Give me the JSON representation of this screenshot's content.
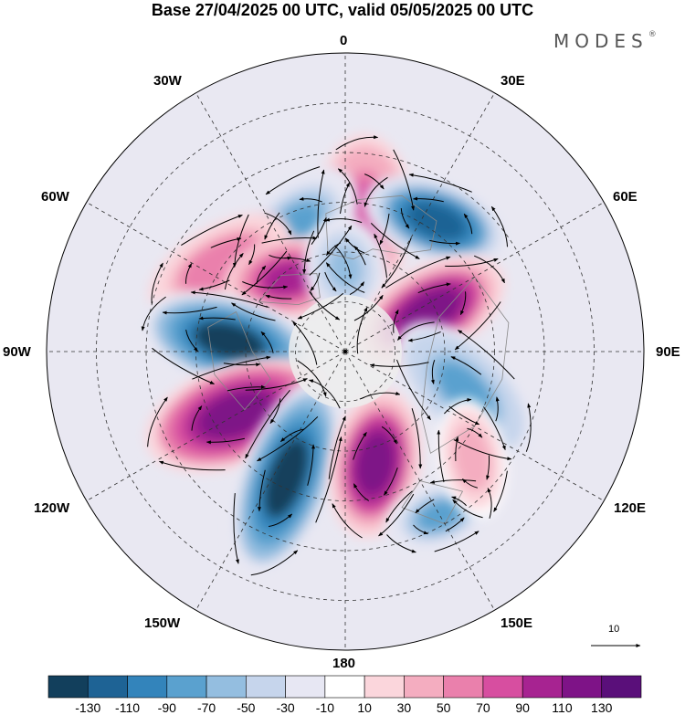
{
  "title": "Base 27/04/2025 00 UTC, valid 05/05/2025 00 UTC",
  "brand": {
    "name": "MODES",
    "mark": "®"
  },
  "longitude_labels": {
    "top": "0",
    "top_left": "30W",
    "top_right": "30E",
    "upper_left": "60W",
    "upper_right": "60E",
    "left": "90W",
    "right": "90E",
    "lower_left": "120W",
    "lower_right": "120E",
    "bottom_left": "150W",
    "bottom_right": "150E",
    "bottom": "180"
  },
  "reference_vector": {
    "label": "10"
  },
  "colorbar": {
    "ticks": [
      "-130",
      "-110",
      "-90",
      "-70",
      "-50",
      "-30",
      "-10",
      "10",
      "30",
      "50",
      "70",
      "90",
      "110",
      "130"
    ],
    "colors": [
      "#123f5c",
      "#1e6395",
      "#3384bb",
      "#5aa1cf",
      "#94bee0",
      "#c6d5ec",
      "#e7e7f3",
      "#ffffff",
      "#fbd6dc",
      "#f4adc0",
      "#ea80ac",
      "#d74ea0",
      "#a72391",
      "#7e1387",
      "#5a0f7a"
    ]
  },
  "anomaly_cells": [
    {
      "lon": 8,
      "lat": 48,
      "value": 80,
      "rx": 0.42,
      "ry": 0.26,
      "rot": 90
    },
    {
      "lon": 35,
      "lat": 42,
      "value": -120,
      "rx": 0.4,
      "ry": 0.22,
      "rot": 20
    },
    {
      "lon": -22,
      "lat": 50,
      "value": -70,
      "rx": 0.4,
      "ry": 0.24,
      "rot": 135
    },
    {
      "lon": -55,
      "lat": 44,
      "value": 70,
      "rx": 0.42,
      "ry": 0.2,
      "rot": 150
    },
    {
      "lon": -38,
      "lat": 62,
      "value": 100,
      "rx": 0.34,
      "ry": 0.22,
      "rot": 170
    },
    {
      "lon": 0,
      "lat": 65,
      "value": -60,
      "rx": 0.28,
      "ry": 0.22,
      "rot": 80
    },
    {
      "lon": 65,
      "lat": 62,
      "value": 120,
      "rx": 0.44,
      "ry": 0.24,
      "rot": 150
    },
    {
      "lon": -85,
      "lat": 55,
      "value": -130,
      "rx": 0.48,
      "ry": 0.24,
      "rot": 15
    },
    {
      "lon": -120,
      "lat": 52,
      "value": 130,
      "rx": 0.5,
      "ry": 0.27,
      "rot": 160
    },
    {
      "lon": -155,
      "lat": 48,
      "value": -130,
      "rx": 0.55,
      "ry": 0.24,
      "rot": 110
    },
    {
      "lon": 165,
      "lat": 55,
      "value": 120,
      "rx": 0.4,
      "ry": 0.24,
      "rot": 100
    },
    {
      "lon": 108,
      "lat": 52,
      "value": -80,
      "rx": 0.46,
      "ry": 0.24,
      "rot": 45
    },
    {
      "lon": 150,
      "lat": 33,
      "value": -70,
      "rx": 0.3,
      "ry": 0.18,
      "rot": 160
    },
    {
      "lon": 130,
      "lat": 40,
      "value": 50,
      "rx": 0.32,
      "ry": 0.18,
      "rot": 80
    }
  ]
}
